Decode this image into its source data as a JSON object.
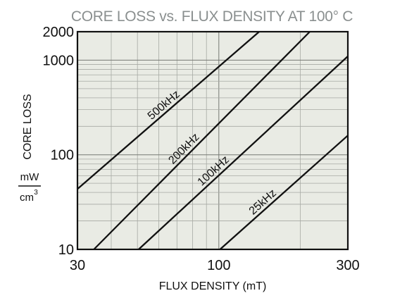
{
  "chart_data": {
    "type": "line",
    "title": "CORE LOSS vs. FLUX DENSITY AT 100° C",
    "xlabel": "FLUX DENSITY (mT)",
    "ylabel": "CORE LOSS",
    "yunit": {
      "numerator": "mW",
      "denominator": "cm",
      "exponent": "3"
    },
    "xscale": "log",
    "yscale": "log",
    "xlim": [
      30,
      300
    ],
    "ylim": [
      10,
      2000
    ],
    "xticks": [
      {
        "value": 30,
        "label": "30"
      },
      {
        "value": 100,
        "label": "100"
      },
      {
        "value": 300,
        "label": "300"
      }
    ],
    "yticks": [
      {
        "value": 10,
        "label": "10"
      },
      {
        "value": 100,
        "label": "100"
      },
      {
        "value": 1000,
        "label": "1000"
      },
      {
        "value": 2000,
        "label": "2000"
      }
    ],
    "grid": true,
    "series": [
      {
        "name": "500kHz",
        "points": [
          [
            30,
            43.5
          ],
          [
            141,
            2000
          ]
        ]
      },
      {
        "name": "200kHz",
        "points": [
          [
            34.5,
            10
          ],
          [
            217,
            2000
          ]
        ]
      },
      {
        "name": "100kHz",
        "points": [
          [
            50.5,
            10
          ],
          [
            300,
            1100
          ]
        ]
      },
      {
        "name": "25kHz",
        "points": [
          [
            101,
            10
          ],
          [
            300,
            160
          ]
        ]
      }
    ],
    "colors": {
      "plot_background": "#e9ebe4",
      "grid": "#a7aaa4",
      "line": "#111111",
      "title": "#8a8f8f"
    }
  }
}
